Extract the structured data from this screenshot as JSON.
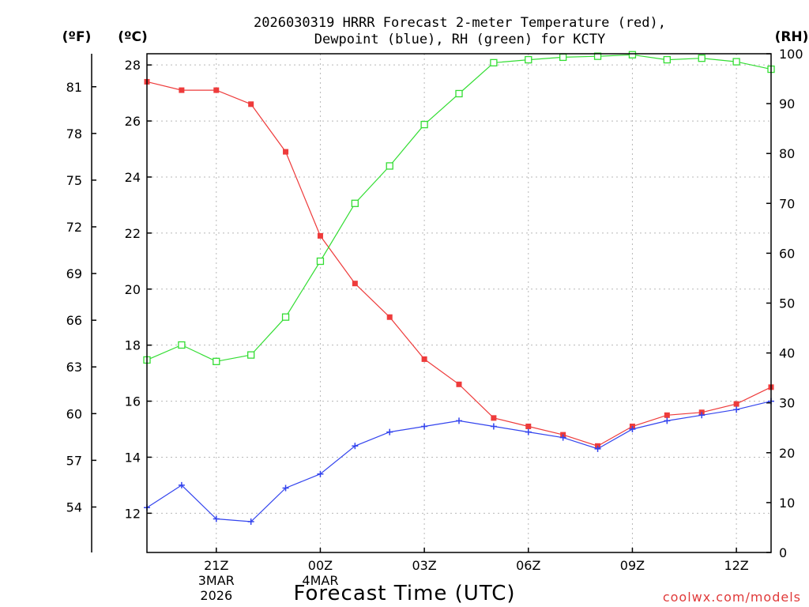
{
  "chart_data": {
    "type": "line",
    "title_line1": "2026030319 HRRR Forecast 2-meter Temperature (red),",
    "title_line2": "Dewpoint (blue), RH (green) for KCTY",
    "xlabel": "Forecast Time (UTC)",
    "credit": "coolwx.com/models",
    "units": {
      "fahrenheit": "(ºF)",
      "celsius": "(ºC)",
      "rh": "(RH)"
    },
    "x_hours": [
      19,
      20,
      21,
      22,
      23,
      24,
      25,
      26,
      27,
      28,
      29,
      30,
      31,
      32,
      33,
      34,
      35,
      36,
      37
    ],
    "xlim": [
      19,
      37
    ],
    "x_ticks": [
      {
        "hour": 21,
        "label": "21Z",
        "date": "3MAR",
        "year": "2026"
      },
      {
        "hour": 24,
        "label": "00Z",
        "date": "4MAR",
        "year": ""
      },
      {
        "hour": 27,
        "label": "03Z",
        "date": "",
        "year": ""
      },
      {
        "hour": 30,
        "label": "06Z",
        "date": "",
        "year": ""
      },
      {
        "hour": 33,
        "label": "09Z",
        "date": "",
        "year": ""
      },
      {
        "hour": 36,
        "label": "12Z",
        "date": "",
        "year": ""
      }
    ],
    "celsius_axis": {
      "ylim": [
        10.6,
        28.4
      ],
      "ticks": [
        12,
        14,
        16,
        18,
        20,
        22,
        24,
        26,
        28
      ]
    },
    "fahrenheit_axis": {
      "ticks": [
        54,
        57,
        60,
        63,
        66,
        69,
        72,
        75,
        78,
        81
      ]
    },
    "rh_axis": {
      "ylim": [
        0,
        100
      ],
      "ticks": [
        0,
        10,
        20,
        30,
        40,
        50,
        60,
        70,
        80,
        90,
        100
      ]
    },
    "series": [
      {
        "key": "temperature",
        "color": "#ee3b3b",
        "marker": "filled-square",
        "axis": "celsius",
        "values": [
          27.4,
          27.1,
          27.1,
          26.6,
          24.9,
          21.9,
          20.2,
          19.0,
          17.5,
          16.6,
          15.4,
          15.1,
          14.8,
          14.4,
          15.1,
          15.5,
          15.6,
          15.9,
          16.5
        ]
      },
      {
        "key": "dewpoint",
        "color": "#3344ee",
        "marker": "plus",
        "axis": "celsius",
        "values": [
          12.2,
          13.0,
          11.8,
          11.7,
          12.9,
          13.4,
          14.4,
          14.9,
          15.1,
          15.3,
          15.1,
          14.9,
          14.7,
          14.3,
          15.0,
          15.3,
          15.5,
          15.7,
          16.0
        ]
      },
      {
        "key": "rh",
        "color": "#33dd33",
        "marker": "open-square",
        "axis": "rh",
        "values": [
          38.6,
          41.6,
          38.3,
          39.6,
          47.2,
          58.4,
          70.0,
          77.5,
          85.8,
          92.0,
          98.2,
          98.8,
          99.3,
          99.5,
          99.8,
          98.8,
          99.1,
          98.4,
          96.9
        ]
      }
    ]
  }
}
